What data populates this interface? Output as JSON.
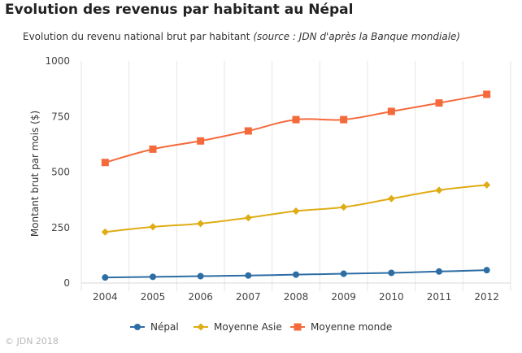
{
  "title": "Evolution des revenus par habitant au Népal",
  "subtitle_main": "Evolution du revenu national brut par habitant",
  "subtitle_source": "(source : JDN d'après la Banque mondiale)",
  "footer": "© JDN 2018",
  "chart_data": {
    "type": "line",
    "ylabel": "Montant brut par mois ($)",
    "xlabel": "",
    "ylim": [
      0,
      1000
    ],
    "yticks": [
      0,
      250,
      500,
      750,
      1000
    ],
    "categories": [
      "2004",
      "2005",
      "2006",
      "2007",
      "2008",
      "2009",
      "2010",
      "2011",
      "2012"
    ],
    "grid": "vertical lines between categories",
    "legend_position": "bottom-center",
    "series": [
      {
        "name": "Népal",
        "color": "#2e6da4",
        "marker": "circle",
        "values": [
          25,
          28,
          31,
          34,
          38,
          42,
          46,
          52,
          58
        ]
      },
      {
        "name": "Moyenne Asie",
        "color": "#e0ac16",
        "marker": "diamond",
        "values": [
          230,
          253,
          268,
          294,
          324,
          342,
          380,
          418,
          442
        ]
      },
      {
        "name": "Moyenne monde",
        "color": "#f46a3b",
        "marker": "square",
        "values": [
          543,
          603,
          640,
          685,
          736,
          736,
          773,
          811,
          850
        ]
      }
    ]
  }
}
